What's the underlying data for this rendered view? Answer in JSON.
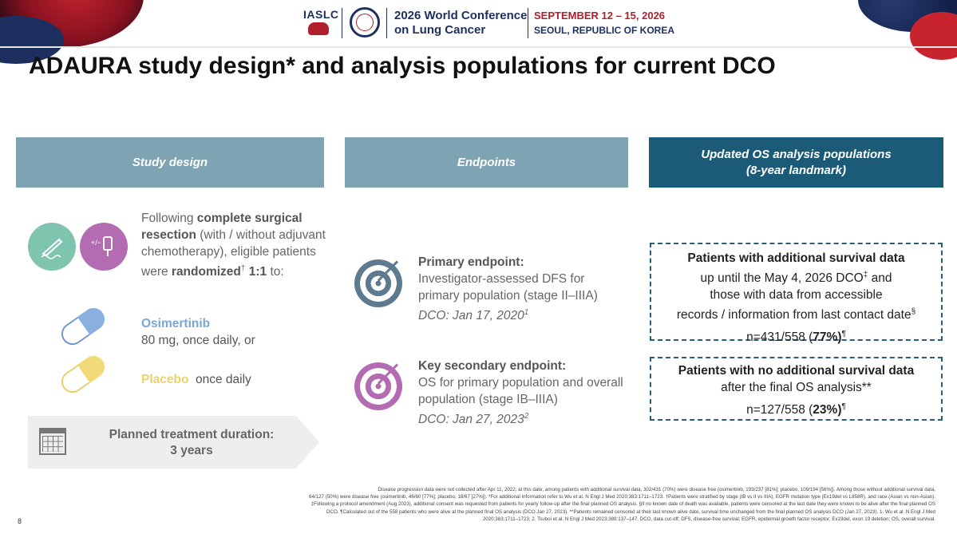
{
  "header": {
    "org": "IASLC",
    "conference_line1": "2026 World Conference",
    "conference_line2": "on Lung Cancer",
    "dates": "SEPTEMBER 12 – 15, 2026",
    "location": "SEOUL, REPUBLIC OF KOREA"
  },
  "slide": {
    "title": "ADAURA study design* and analysis populations for current DCO",
    "page_number": "8"
  },
  "columns": {
    "study_design": "Study design",
    "endpoints": "Endpoints",
    "os_populations_line1": "Updated OS analysis populations",
    "os_populations_line2": "(8-year landmark)"
  },
  "study_design": {
    "intro_1": "Following ",
    "intro_bold_1": "complete surgical resection",
    "intro_2": " (with / without adjuvant chemotherapy), eligible patients were ",
    "intro_bold_2": "randomized",
    "intro_sup": "†",
    "intro_bold_3": " 1:1",
    "intro_3": " to:",
    "osimertinib_name": "Osimertinib",
    "osimertinib_dose": "80 mg, once daily, or",
    "placebo_name": "Placebo",
    "placebo_rest": "once daily",
    "duration_label": "Planned treatment duration:",
    "duration_value": "3 years",
    "icons": [
      "surgery-icon",
      "chemotherapy-icon",
      "osimertinib-pill-icon",
      "placebo-pill-icon",
      "calendar-icon"
    ]
  },
  "endpoints": {
    "primary_heading": "Primary endpoint:",
    "primary_desc": "Investigator-assessed DFS for primary population (stage II–IIIA)",
    "primary_dco": "DCO: Jan 17, 2020",
    "primary_sup": "1",
    "secondary_heading": "Key secondary endpoint:",
    "secondary_desc": "OS for primary population and overall population (stage IB–IIIA)",
    "secondary_dco": "DCO: Jan 27, 2023",
    "secondary_sup": "2"
  },
  "os_populations": {
    "box1_heading": "Patients with additional survival data",
    "box1_line1": "up until the May 4, 2026 DCO",
    "box1_sup1": "‡",
    "box1_line1b": " and",
    "box1_line2": "those with data from accessible",
    "box1_line3": "records / information from last contact date",
    "box1_sup2": "§",
    "box1_n": "n=431/558 (",
    "box1_pct": "77%)",
    "box1_sup3": "¶",
    "box2_heading": "Patients with no additional survival data",
    "box2_line1": "after the final OS analysis**",
    "box2_n": "n=127/558 (",
    "box2_pct": "23%)",
    "box2_sup": "¶"
  },
  "footnotes": {
    "line1": "Disease progression data were not collected after Apr 11, 2022; at this date, among patients with additional survival data, 302/431 (70%) were disease free (osimertinib, 193/237 [81%]; placebo, 109/194 [56%]). Among those without additional survival data,",
    "line2": "64/127 (50%) were disease free (osimertinib, 46/60 [77%]; placebo, 18/67 [27%]). *For additional information refer to Wu et al. N Engl J Med 2020;383:1711–1723. †Patients were stratified by stage (IB vs II vs IIIA), EGFR mutation type (Ex19del vs L858R), and race (Asian vs non-Asian).",
    "line3": "‡Following a protocol amendment (Aug 2023), additional consent was requested from patients for yearly follow-up after the final planned OS analysis. §If no known date of death was available, patients were censored at the last date they were known to be alive after the final planned OS",
    "line4": "DCO. ¶Calculated out of the 558 patients who were alive at the planned final OS analysis (DCO Jan 27, 2023). **Patients remained censored at their last known alive date, survival time unchanged from the final planned OS analysis DCO (Jan 27, 2023). 1. Wu et al. N Engl J Med",
    "line5": "2020;383:1711–1723; 2. Tsuboi et al. N Engl J Med 2023;389:137–147. DCO, data cut-off; DFS, disease-free survival; EGFR, epidermal growth factor receptor; Ex19del, exon 19 deletion; OS, overall survival."
  },
  "colors": {
    "header_navy": "#1d2f5e",
    "header_red": "#b01f2c",
    "col_header_light": "#7ea3b2",
    "col_header_dark": "#1c5b78",
    "osimertinib_blue": "#7aa7d8",
    "placebo_yellow": "#ead06e"
  }
}
